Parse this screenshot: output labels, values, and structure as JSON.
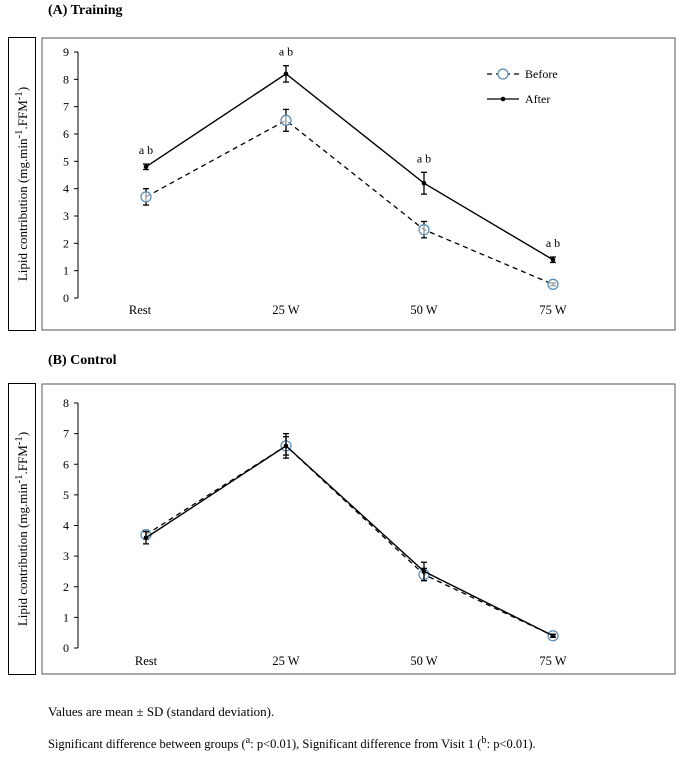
{
  "notes": {
    "line1": "Values are mean ± SD (standard deviation).",
    "line2_a": "Significant difference between groups (",
    "sup_a": "a",
    "line2_b": ": p<0.01), Significant difference from Visit 1 (",
    "sup_b": "b",
    "line2_c": ": p<0.01)."
  },
  "chart_data": [
    {
      "type": "line",
      "title": "(A) Training",
      "ylabel": "Lipid contribution (mg.min-1.FFM-1)",
      "ylabel_parts": [
        "Lipid contribution (mg.min",
        "-1",
        ".FFM",
        "-1",
        ")"
      ],
      "categories": [
        "Rest",
        "25 W",
        "50 W",
        "75 W"
      ],
      "ylim": [
        0,
        9
      ],
      "yticks": [
        "0",
        "1",
        "2",
        "3",
        "4",
        "5",
        "6",
        "7",
        "8",
        "9"
      ],
      "series": [
        {
          "name": "Before",
          "style": "dashed-circle",
          "color": "#5b8fb9",
          "values": [
            3.7,
            6.5,
            2.5,
            0.5
          ],
          "sd": [
            0.3,
            0.4,
            0.3,
            0.05
          ]
        },
        {
          "name": "After",
          "style": "solid-dot",
          "color": "#000000",
          "values": [
            4.8,
            8.2,
            4.2,
            1.4
          ],
          "sd": [
            0.1,
            0.3,
            0.4,
            0.1
          ]
        }
      ],
      "annotations": [
        "a b",
        "a b",
        "a b",
        "a b"
      ],
      "legend": "top-right"
    },
    {
      "type": "line",
      "title": "(B) Control",
      "ylabel": "Lipid contribution (mg.min-1.FFM-1)",
      "ylabel_parts": [
        "Lipid contribution (mg.min",
        "-1",
        ".FFM",
        "-1",
        ")"
      ],
      "categories": [
        "Rest",
        "25 W",
        "50 W",
        "75 W"
      ],
      "ylim": [
        0,
        8
      ],
      "yticks": [
        "0",
        "1",
        "2",
        "3",
        "4",
        "5",
        "6",
        "7",
        "8"
      ],
      "series": [
        {
          "name": "Before",
          "style": "dashed-circle",
          "color": "#5b8fb9",
          "values": [
            3.7,
            6.6,
            2.4,
            0.4
          ],
          "sd": [
            0.15,
            0.3,
            0.2,
            0.05
          ]
        },
        {
          "name": "After",
          "style": "solid-dot",
          "color": "#000000",
          "values": [
            3.6,
            6.6,
            2.5,
            0.4
          ],
          "sd": [
            0.2,
            0.4,
            0.3,
            0.05
          ]
        }
      ],
      "annotations": [],
      "legend": "none"
    }
  ]
}
